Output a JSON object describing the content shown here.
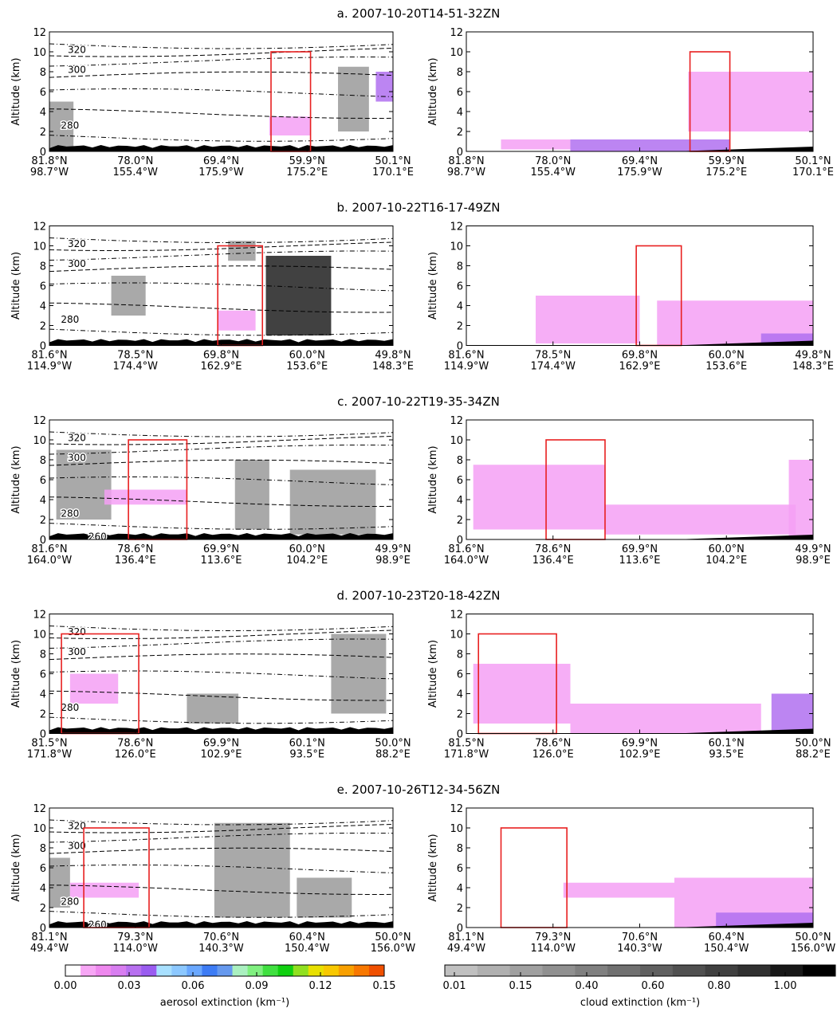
{
  "rows": [
    {
      "title": "a. 2007-10-20T14-51-32ZN",
      "lat": [
        "81.8°N",
        "78.0°N",
        "69.4°N",
        "59.9°N",
        "50.1°N"
      ],
      "lon": [
        "98.7°W",
        "155.4°W",
        "175.9°W",
        "175.2°E",
        "170.1°E"
      ],
      "contours": [
        320,
        300,
        280
      ]
    },
    {
      "title": "b. 2007-10-22T16-17-49ZN",
      "lat": [
        "81.6°N",
        "78.5°N",
        "69.8°N",
        "60.0°N",
        "49.8°N"
      ],
      "lon": [
        "114.9°W",
        "174.4°W",
        "162.9°E",
        "153.6°E",
        "148.3°E"
      ],
      "contours": [
        320,
        300,
        280
      ]
    },
    {
      "title": "c. 2007-10-22T19-35-34ZN",
      "lat": [
        "81.6°N",
        "78.6°N",
        "69.9°N",
        "60.0°N",
        "49.9°N"
      ],
      "lon": [
        "164.0°W",
        "136.4°E",
        "113.6°E",
        "104.2°E",
        "98.9°E"
      ],
      "contours": [
        320,
        300,
        280,
        260
      ]
    },
    {
      "title": "d. 2007-10-23T20-18-42ZN",
      "lat": [
        "81.5°N",
        "78.6°N",
        "69.9°N",
        "60.1°N",
        "50.0°N"
      ],
      "lon": [
        "171.8°W",
        "126.0°E",
        "102.9°E",
        "93.5°E",
        "88.2°E"
      ],
      "contours": [
        320,
        300,
        280
      ]
    },
    {
      "title": "e. 2007-10-26T12-34-56ZN",
      "lat": [
        "81.1°N",
        "79.3°N",
        "70.6°N",
        "60.4°N",
        "50.0°N"
      ],
      "lon": [
        "49.4°W",
        "114.0°W",
        "140.3°W",
        "150.4°W",
        "156.0°W"
      ],
      "contours": [
        320,
        300,
        280,
        260
      ]
    }
  ],
  "y_label": "Altitude (km)",
  "ylim": [
    0,
    12
  ],
  "yticks": [
    0,
    2,
    4,
    6,
    8,
    10,
    12
  ],
  "box_ylim": [
    0,
    10
  ],
  "aerosol_colorbar": {
    "label": "aerosol extinction (km⁻¹)",
    "ticks": [
      {
        "value": 0,
        "label": "0.00"
      },
      {
        "value": 0.03,
        "label": "0.03"
      },
      {
        "value": 0.06,
        "label": "0.06"
      },
      {
        "value": 0.09,
        "label": "0.09"
      },
      {
        "value": 0.12,
        "label": "0.12"
      },
      {
        "value": 0.15,
        "label": "0.15"
      }
    ],
    "colors": [
      "#ffffff",
      "#f7a6f5",
      "#ee88ee",
      "#d87ef0",
      "#b870f0",
      "#9a5cf0",
      "#a8e0ff",
      "#8cc8ff",
      "#6aa8ff",
      "#3d7cf5",
      "#6699ee",
      "#aaf0c0",
      "#80f080",
      "#40e040",
      "#10d010",
      "#90e020",
      "#e8e000",
      "#f8c800",
      "#f8a000",
      "#f87800",
      "#f05000"
    ]
  },
  "cloud_colorbar": {
    "label": "cloud extinction (km⁻¹)",
    "ticks": [
      {
        "value": 0.01,
        "label": "0.01"
      },
      {
        "value": 0.15,
        "label": "0.15"
      },
      {
        "value": 0.4,
        "label": "0.40"
      },
      {
        "value": 0.6,
        "label": "0.60"
      },
      {
        "value": 0.8,
        "label": "0.80"
      },
      {
        "value": 1,
        "label": "1.00"
      }
    ],
    "colors": [
      "#c0c0c0",
      "#b0b0b0",
      "#a0a0a0",
      "#909090",
      "#808080",
      "#707070",
      "#606060",
      "#505050",
      "#404040",
      "#303030",
      "#181818",
      "#000000"
    ]
  }
}
